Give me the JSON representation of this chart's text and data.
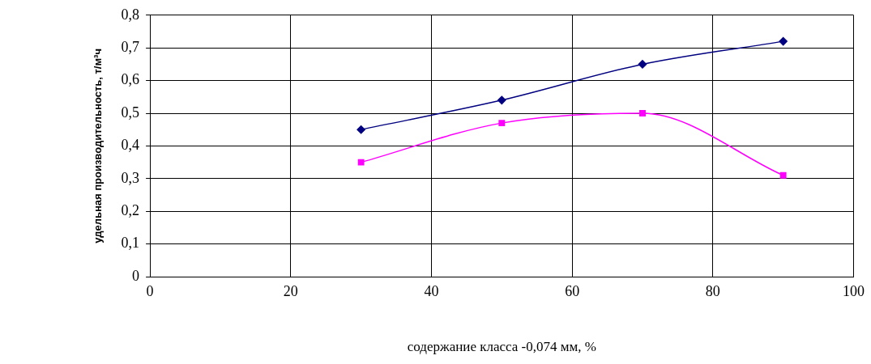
{
  "chart_data": {
    "type": "line",
    "xlabel": "содержание класса -0,074 мм, %",
    "ylabel": "удельная производительность, т/м³ч",
    "x": [
      30,
      50,
      70,
      90
    ],
    "series": [
      {
        "color": "#000080",
        "values": [
          0.45,
          0.54,
          0.65,
          0.72
        ],
        "marker": "diamond"
      },
      {
        "color": "#ff00ff",
        "values": [
          0.35,
          0.47,
          0.5,
          0.31
        ],
        "marker": "square"
      }
    ],
    "xlim": [
      0,
      100
    ],
    "xticks": [
      0,
      20,
      40,
      60,
      80,
      100
    ],
    "ylim": [
      0,
      0.8
    ],
    "yticks": [
      {
        "value": 0,
        "label": "0"
      },
      {
        "value": 0.1,
        "label": "0,1"
      },
      {
        "value": 0.2,
        "label": "0,2"
      },
      {
        "value": 0.3,
        "label": "0,3"
      },
      {
        "value": 0.4,
        "label": "0,4"
      },
      {
        "value": 0.5,
        "label": "0,5"
      },
      {
        "value": 0.6,
        "label": "0,6"
      },
      {
        "value": 0.7,
        "label": "0,7"
      },
      {
        "value": 0.8,
        "label": "0,8"
      }
    ],
    "grid": true,
    "line_style": "solid"
  }
}
